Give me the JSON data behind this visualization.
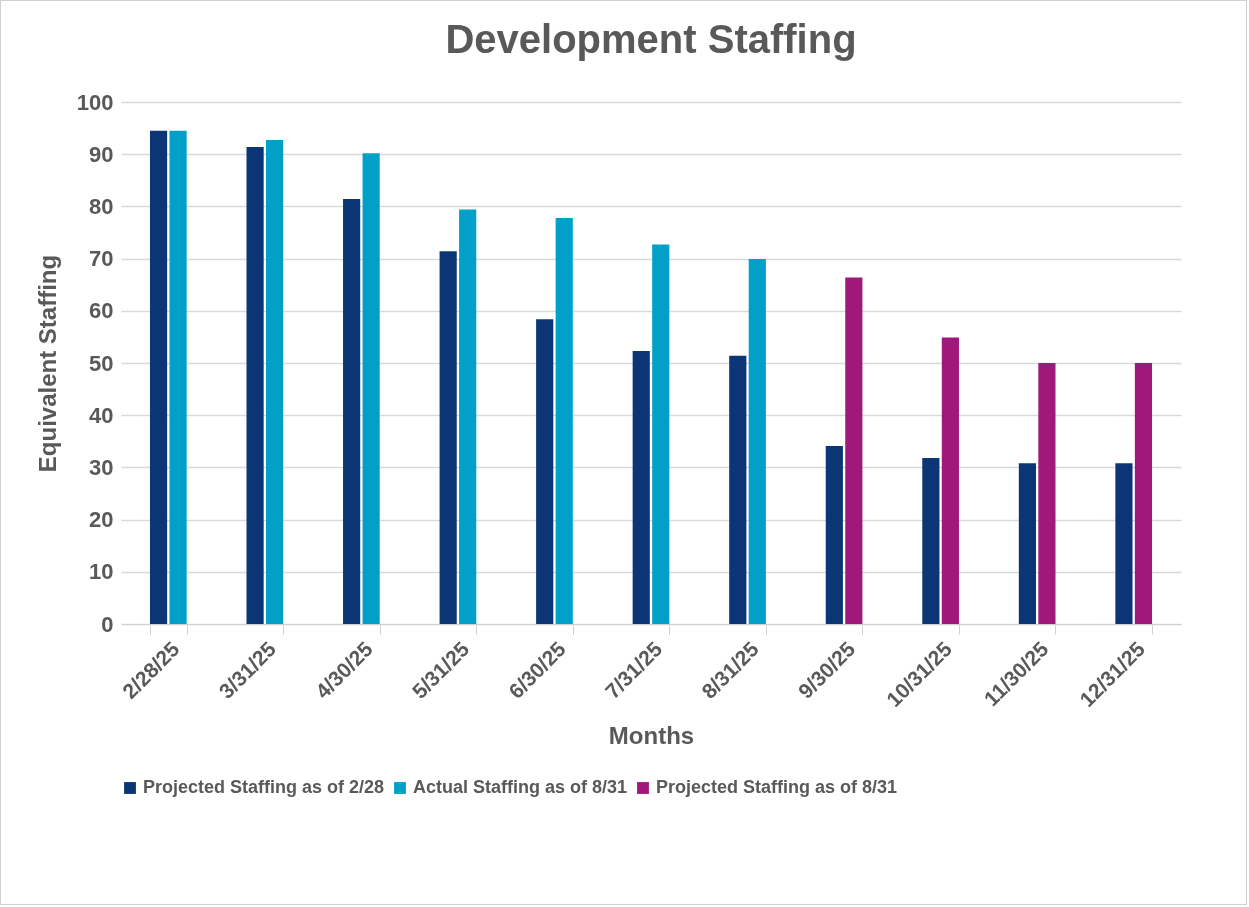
{
  "chart_data": {
    "type": "bar",
    "title": "Development Staffing",
    "xlabel": "Months",
    "ylabel": "Equivalent Staffing",
    "categories": [
      "2/28/25",
      "3/31/25",
      "4/30/25",
      "5/31/25",
      "6/30/25",
      "7/31/25",
      "8/31/25",
      "9/30/25",
      "10/31/25",
      "11/30/25",
      "12/31/25"
    ],
    "series": [
      {
        "name": "Projected Staffing as of 2/28",
        "color": "#0c3575",
        "values": [
          94.5,
          91.4,
          81.4,
          71.4,
          58.4,
          52.3,
          51.4,
          34.1,
          31.8,
          30.8,
          30.8
        ]
      },
      {
        "name": "Actual Staffing as of 8/31",
        "color": "#00a0c8",
        "values": [
          94.5,
          92.7,
          90.2,
          79.4,
          77.8,
          72.7,
          69.9,
          null,
          null,
          null,
          null
        ]
      },
      {
        "name": "Projected Staffing as of 8/31",
        "color": "#a0197a",
        "values": [
          null,
          null,
          null,
          null,
          null,
          null,
          null,
          66.4,
          54.9,
          50,
          50
        ]
      }
    ],
    "ylim": [
      0,
      100
    ],
    "yticks": [
      0,
      10,
      20,
      30,
      40,
      50,
      60,
      70,
      80,
      90,
      100
    ],
    "grid": "y",
    "legend": "bottom"
  }
}
